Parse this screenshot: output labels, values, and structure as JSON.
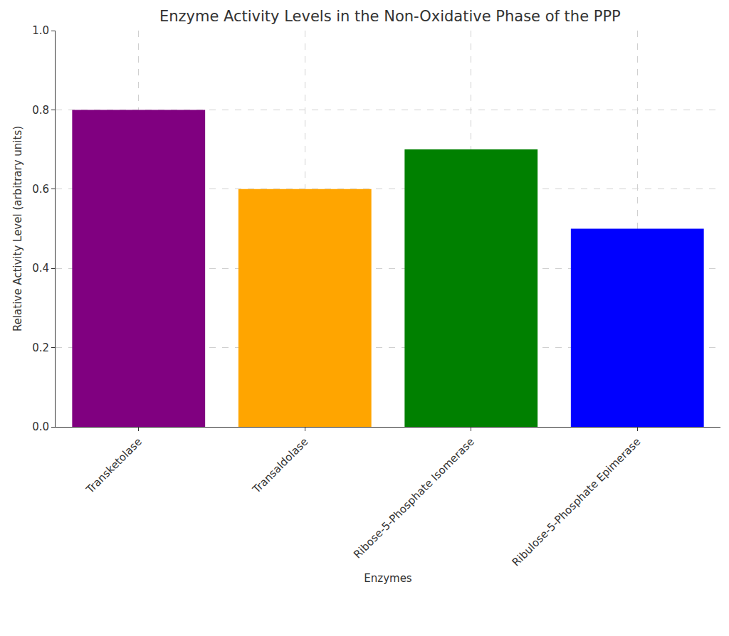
{
  "chart_data": {
    "type": "bar",
    "title": "Enzyme Activity Levels in the Non-Oxidative Phase of the PPP",
    "x_label": "Enzymes",
    "y_label": "Relative Activity Level (arbitrary units)",
    "categories": [
      "Transketolase",
      "Transaldolase",
      "Ribose-5-Phosphate Isomerase",
      "Ribulose-5-Phosphate Epimerase"
    ],
    "values": [
      0.8,
      0.6,
      0.7,
      0.5
    ],
    "colors": [
      "#800080",
      "#FFA500",
      "#008000",
      "#0000FF"
    ],
    "ylim": [
      0,
      1.0
    ],
    "yticks": [
      {
        "value": 0,
        "label": "0.0"
      },
      0.2,
      0.4,
      0.6,
      0.8,
      {
        "value": 1,
        "label": "1.0"
      }
    ],
    "grid": true
  }
}
